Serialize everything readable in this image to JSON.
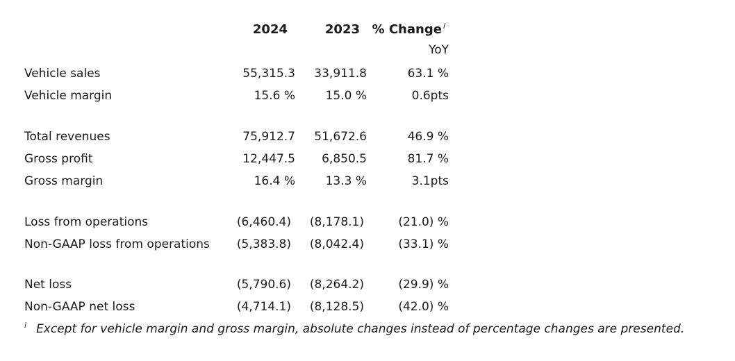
{
  "header": {
    "col_2024": "2024",
    "col_2023": "2023",
    "col_change": "% Change",
    "col_change_sup": "i",
    "col_change_sub": "YoY"
  },
  "rows": [
    {
      "label": "Vehicle sales",
      "v2024": "55,315.3",
      "v2023": "33,911.8",
      "change": "63.1 %"
    },
    {
      "label": "Vehicle margin",
      "v2024": "15.6 %",
      "v2023": "15.0 %",
      "change": "0.6pts"
    },
    {
      "label": "Total revenues",
      "v2024": "75,912.7",
      "v2023": "51,672.6",
      "change": "46.9 %"
    },
    {
      "label": "Gross profit",
      "v2024": "12,447.5",
      "v2023": "6,850.5",
      "change": "81.7 %"
    },
    {
      "label": "Gross margin",
      "v2024": "16.4 %",
      "v2023": "13.3 %",
      "change": "3.1pts"
    },
    {
      "label": "Loss from operations",
      "v2024": "(6,460.4)",
      "v2023": "(8,178.1)",
      "change": "(21.0) %"
    },
    {
      "label": "Non-GAAP loss from operations",
      "v2024": "(5,383.8)",
      "v2023": "(8,042.4)",
      "change": "(33.1) %"
    },
    {
      "label": "Net loss",
      "v2024": "(5,790.6)",
      "v2023": "(8,264.2)",
      "change": "(29.9) %"
    },
    {
      "label": "Non-GAAP net loss",
      "v2024": "(4,714.1)",
      "v2023": "(8,128.5)",
      "change": "(42.0) %"
    }
  ],
  "footnote": {
    "mark": "i",
    "text": "Except for vehicle margin and gross margin, absolute changes instead of percentage changes are presented."
  }
}
